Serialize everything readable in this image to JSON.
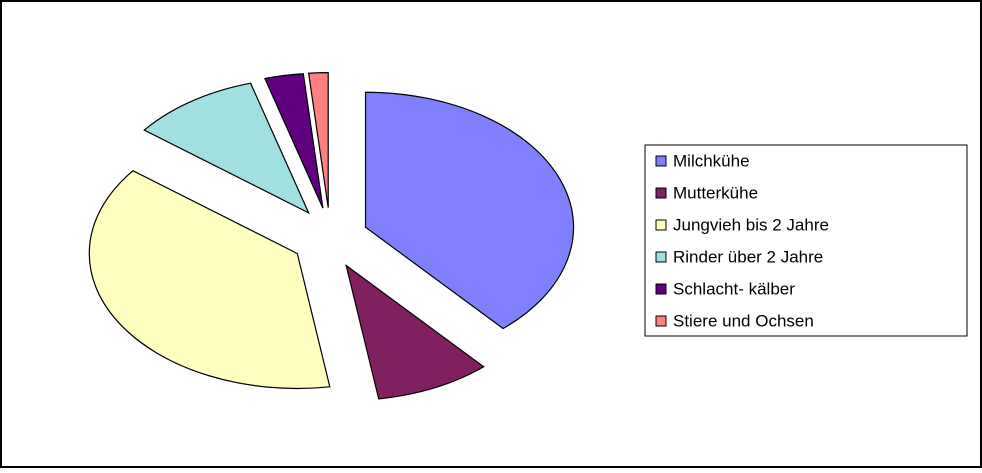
{
  "chart_data": {
    "type": "pie",
    "categories": [
      "Milchkühe",
      "Mutterkühe",
      "Jungvieh bis 2 Jahre",
      "Rinder über 2 Jahre",
      "Schlacht- kälber",
      "Stiere und Ochsen"
    ],
    "values": [
      38.5,
      9,
      38,
      10,
      3,
      1.5
    ],
    "colors": [
      "#8080ff",
      "#802060",
      "#ffffc0",
      "#a0e0e0",
      "#600080",
      "#ff8080"
    ],
    "legend": "right"
  }
}
